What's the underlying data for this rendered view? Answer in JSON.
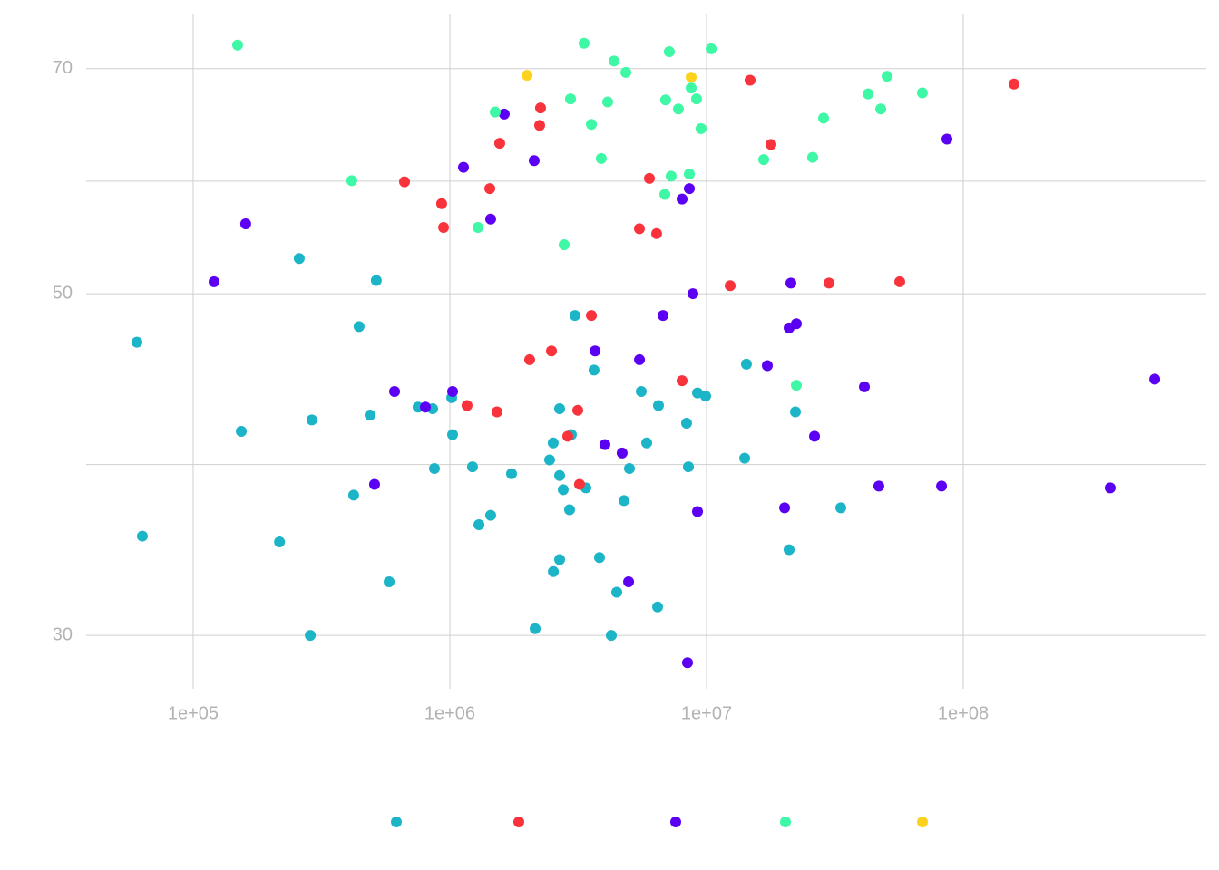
{
  "chart_data": {
    "type": "scatter",
    "xlog": true,
    "ylog": true,
    "grid": true,
    "xlim": [
      38300,
      885000000
    ],
    "ylim": [
      27.7,
      76.0
    ],
    "xticks": [
      {
        "value": 100000,
        "label": "1e+05"
      },
      {
        "value": 1000000,
        "label": "1e+06"
      },
      {
        "value": 10000000,
        "label": "1e+07"
      },
      {
        "value": 100000000,
        "label": "1e+08"
      }
    ],
    "yticks": [
      30,
      50,
      70
    ],
    "legend": "bottom",
    "series": [
      {
        "color": "#1cb5c8",
        "x": [
          60400,
          63400,
          154000,
          217000,
          259000,
          290000,
          286000,
          422000,
          443000,
          489000,
          517000,
          580000,
          752000,
          857000,
          871000,
          1017000,
          1025000,
          1225000,
          1298000,
          1442000,
          1739000,
          2149000,
          2447000,
          2527000,
          2530000,
          2677000,
          2677000,
          2677000,
          2765000,
          2927000,
          2975000,
          3073000,
          3388000,
          3645000,
          3828000,
          4256000,
          4469000,
          4770000,
          5008000,
          5568000,
          5847000,
          6446000,
          6498000,
          8360000,
          8500000,
          9220000,
          9920000,
          14080000,
          14300000,
          20970000,
          22200000,
          33340000
        ],
        "values": [
          46.5,
          34.8,
          40.7,
          34.5,
          52.7,
          41.4,
          30.0,
          37.0,
          47.6,
          41.7,
          51.0,
          32.5,
          42.2,
          42.1,
          38.5,
          42.8,
          40.5,
          38.6,
          35.4,
          35.9,
          38.2,
          30.3,
          39.0,
          40.0,
          33.0,
          42.1,
          38.1,
          33.6,
          37.3,
          36.2,
          40.5,
          48.4,
          37.4,
          44.6,
          33.7,
          30.0,
          32.0,
          36.7,
          38.5,
          43.2,
          40.0,
          31.3,
          42.3,
          41.2,
          38.6,
          43.1,
          42.9,
          39.1,
          45.0,
          34.1,
          41.9,
          36.3
        ]
      },
      {
        "color": "#f8333c",
        "x": [
          666000,
          929000,
          945000,
          1167000,
          1431000,
          1526000,
          1564000,
          2046000,
          2256000,
          2238000,
          2488000,
          2880000,
          3150000,
          3200000,
          3560000,
          5476000,
          5990000,
          6390000,
          8030000,
          12360000,
          14780000,
          17820000,
          30000000,
          56570000,
          157700000
        ],
        "values": [
          59.1,
          57.2,
          55.2,
          42.3,
          58.5,
          41.9,
          62.6,
          45.3,
          66.0,
          64.3,
          45.9,
          40.4,
          42.0,
          37.6,
          48.4,
          55.1,
          59.4,
          54.7,
          43.9,
          50.6,
          68.8,
          62.5,
          50.8,
          50.9,
          68.4
        ]
      },
      {
        "color": "#5b00f2",
        "x": [
          120600,
          160200,
          509000,
          609000,
          803000,
          1025000,
          1130000,
          1442000,
          1629000,
          2131000,
          3680000,
          4020000,
          4690000,
          4970000,
          5480000,
          6770000,
          8030000,
          8430000,
          8570000,
          8850000,
          9220000,
          17250000,
          20140000,
          20970000,
          21310000,
          22380000,
          26340000,
          41200000,
          46900000,
          82300000,
          86400000,
          373500000,
          557000000
        ],
        "values": [
          50.9,
          55.5,
          37.6,
          43.2,
          42.2,
          43.2,
          60.4,
          55.9,
          65.4,
          61.0,
          45.9,
          39.9,
          39.4,
          32.5,
          45.3,
          48.4,
          57.6,
          28.8,
          58.5,
          50.0,
          36.1,
          44.9,
          36.3,
          47.5,
          50.8,
          47.8,
          40.4,
          43.5,
          37.5,
          37.5,
          63.0,
          37.4,
          44.0
        ]
      },
      {
        "color": "#3ff8a6",
        "x": [
          149000,
          415000,
          1287000,
          1502000,
          2788000,
          2951000,
          3334000,
          3560000,
          3890000,
          4120000,
          4360000,
          4850000,
          6880000,
          6930000,
          7160000,
          7280000,
          7770000,
          8570000,
          8710000,
          9140000,
          9520000,
          10420000,
          16700000,
          22380000,
          25910000,
          28570000,
          42600000,
          47700000,
          50500000,
          69300000
        ],
        "values": [
          72.5,
          59.2,
          55.2,
          65.6,
          53.8,
          66.9,
          72.7,
          64.4,
          61.2,
          66.6,
          70.8,
          69.6,
          58.0,
          66.8,
          71.8,
          59.6,
          65.9,
          59.8,
          68.0,
          66.9,
          64.0,
          72.1,
          61.1,
          43.6,
          61.3,
          65.0,
          67.4,
          65.9,
          69.2,
          67.5
        ]
      },
      {
        "color": "#fcd21f",
        "x": [
          2000000,
          8710000
        ],
        "values": [
          69.3,
          69.1
        ]
      }
    ]
  }
}
